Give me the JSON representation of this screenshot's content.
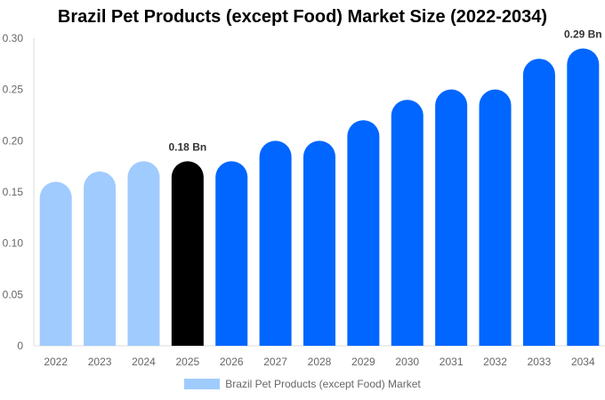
{
  "chart_data": {
    "type": "bar",
    "title": "Brazil Pet Products (except Food) Market Size (2022-2034)",
    "categories": [
      "2022",
      "2023",
      "2024",
      "2025",
      "2026",
      "2027",
      "2028",
      "2029",
      "2030",
      "2031",
      "2032",
      "2033",
      "2034"
    ],
    "series": [
      {
        "name": "Brazil Pet Products (except Food) Market",
        "values": [
          0.16,
          0.17,
          0.18,
          0.18,
          0.18,
          0.2,
          0.2,
          0.22,
          0.24,
          0.25,
          0.25,
          0.28,
          0.29
        ]
      }
    ],
    "bar_colors": [
      "#a0cbff",
      "#a0cbff",
      "#a0cbff",
      "#000000",
      "#0066ff",
      "#0066ff",
      "#0066ff",
      "#0066ff",
      "#0066ff",
      "#0066ff",
      "#0066ff",
      "#0066ff",
      "#0066ff"
    ],
    "legend_color": "#a0cbff",
    "data_labels": [
      {
        "category": "2025",
        "text": "0.18 Bn"
      },
      {
        "category": "2034",
        "text": "0.29 Bn"
      }
    ],
    "yticks": [
      "0",
      "0.05",
      "0.10",
      "0.15",
      "0.20",
      "0.25",
      "0.30"
    ],
    "ylim": [
      0,
      0.3
    ],
    "xlabel": "",
    "ylabel": "",
    "grid": false,
    "legend_position": "bottom"
  }
}
